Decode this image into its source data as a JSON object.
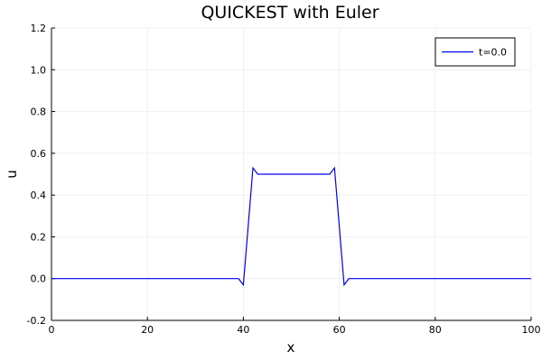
{
  "chart_data": {
    "type": "line",
    "title": "QUICKEST with Euler",
    "xlabel": "x",
    "ylabel": "u",
    "xlim": [
      0,
      100
    ],
    "ylim": [
      -0.2,
      1.2
    ],
    "xticks": [
      0,
      20,
      40,
      60,
      80,
      100
    ],
    "xtick_labels": [
      "0",
      "20",
      "40",
      "60",
      "80",
      "100"
    ],
    "yticks": [
      -0.2,
      0.0,
      0.2,
      0.4,
      0.6,
      0.8,
      1.0,
      1.2
    ],
    "ytick_labels": [
      "-0.2",
      "0.0",
      "0.2",
      "0.4",
      "0.6",
      "0.8",
      "1.0",
      "1.2"
    ],
    "grid": true,
    "legend_position": "top-right",
    "series": [
      {
        "name": "t=0.0",
        "color": "#0000ff",
        "x": [
          0,
          39,
          40,
          42,
          43,
          58,
          59,
          61,
          62,
          100
        ],
        "y": [
          0.0,
          0.0,
          -0.03,
          0.53,
          0.5,
          0.5,
          0.53,
          -0.03,
          0.0,
          0.0
        ]
      }
    ]
  }
}
